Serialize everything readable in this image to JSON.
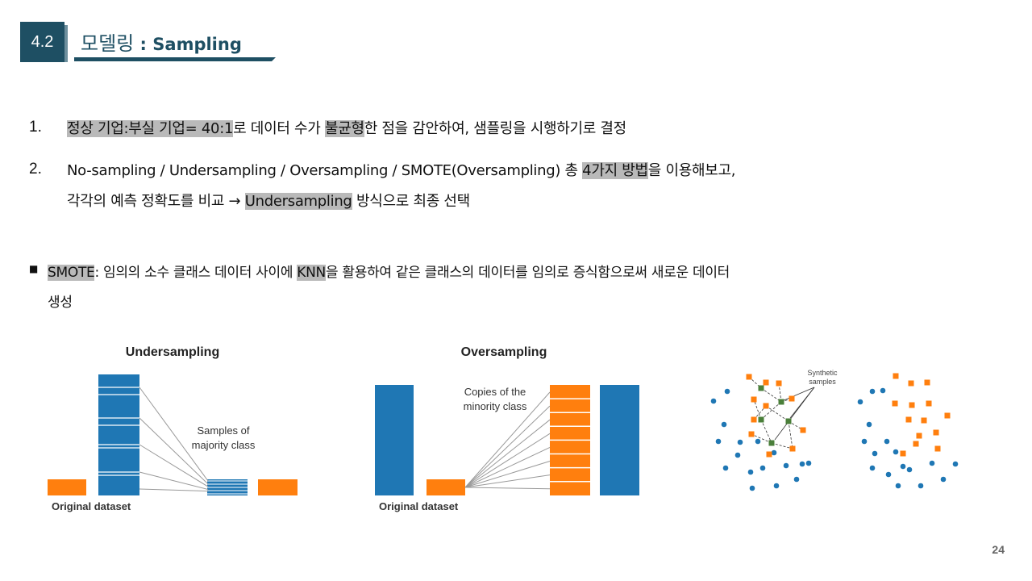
{
  "header": {
    "section_number": "4.2",
    "title_main": "모델링",
    "title_sub": " : Sampling"
  },
  "items": [
    {
      "number": "1.",
      "segments": [
        {
          "text": "정상 기업:부실 기업= 40:1",
          "highlight": true
        },
        {
          "text": "로 데이터 수가 ",
          "highlight": false
        },
        {
          "text": "불균형",
          "highlight": true
        },
        {
          "text": "한 점을 감안하여, 샘플링을 시행하기로 결정",
          "highlight": false
        }
      ]
    },
    {
      "number": "2.",
      "line1_segments": [
        {
          "text": "No-sampling / Undersampling / Oversampling / SMOTE(Oversampling) 총 ",
          "highlight": false
        },
        {
          "text": "4가지 방법",
          "highlight": true
        },
        {
          "text": "을 이용해보고,",
          "highlight": false
        }
      ],
      "line2_segments": [
        {
          "text": "각각의 예측 정확도를 비교 ",
          "highlight": false
        },
        {
          "text": "→",
          "highlight": false
        },
        {
          "text": " ",
          "highlight": false
        },
        {
          "text": "Undersampling",
          "highlight": true
        },
        {
          "text": " 방식으로 최종 선택",
          "highlight": false
        }
      ]
    }
  ],
  "smote_note": {
    "bullet": "■",
    "line1_segments": [
      {
        "text": "SMOTE",
        "highlight": true
      },
      {
        "text": ": 임의의 소수 클래스 데이터 사이에 ",
        "highlight": false
      },
      {
        "text": "KNN",
        "highlight": true
      },
      {
        "text": "을 활용하여 같은 클래스의 데이터를 임의로 증식함으로써 새로운 데이터",
        "highlight": false
      }
    ],
    "line2": "생성"
  },
  "figures": {
    "undersampling": {
      "title": "Undersampling",
      "label": "Samples of\nmajority class",
      "label_lines": [
        "Samples of",
        "majority class"
      ],
      "footer": "Original dataset"
    },
    "oversampling": {
      "title": "Oversampling",
      "label_lines": [
        "Copies of the",
        "minority class"
      ],
      "footer": "Original dataset"
    },
    "smote": {
      "label_lines": [
        "Synthetic",
        "samples"
      ]
    },
    "colors": {
      "blue": "#1f77b4",
      "orange": "#ff7f0e",
      "green": "#4a7f3a",
      "line": "#999999"
    }
  },
  "page_number": "24"
}
